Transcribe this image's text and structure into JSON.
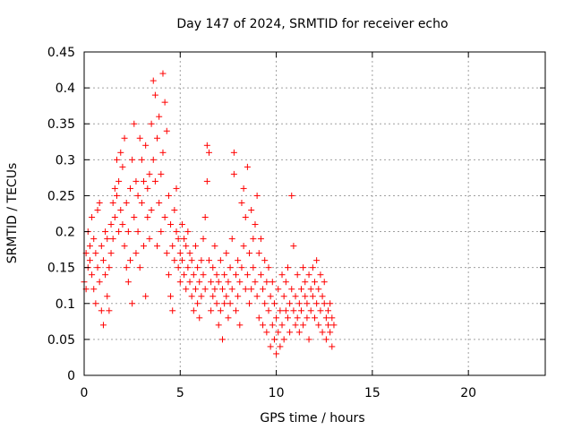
{
  "chart_data": {
    "type": "scatter",
    "title": "Day 147 of 2024, SRMTID for receiver echo",
    "xlabel": "GPS time / hours",
    "ylabel": "SRMTID / TECUs",
    "xlim": [
      0,
      24
    ],
    "ylim": [
      0,
      0.45
    ],
    "xticks": [
      0,
      5,
      10,
      15,
      20
    ],
    "yticks": [
      0,
      0.05,
      0.1,
      0.15,
      0.2,
      0.25,
      0.3,
      0.35,
      0.4,
      0.45
    ],
    "xtick_labels": [
      "0",
      "5",
      "10",
      "15",
      "20"
    ],
    "ytick_labels": [
      "0",
      "0.05",
      "0.1",
      "0.15",
      "0.2",
      "0.25",
      "0.3",
      "0.35",
      "0.4",
      "0.45"
    ],
    "grid": true,
    "marker": "+",
    "color": "#ff0000",
    "series": [
      {
        "name": "SRMTID",
        "points": [
          [
            0.0,
            0.13
          ],
          [
            0.1,
            0.12
          ],
          [
            0.1,
            0.17
          ],
          [
            0.2,
            0.2
          ],
          [
            0.2,
            0.15
          ],
          [
            0.3,
            0.18
          ],
          [
            0.3,
            0.16
          ],
          [
            0.4,
            0.14
          ],
          [
            0.4,
            0.22
          ],
          [
            0.5,
            0.19
          ],
          [
            0.5,
            0.12
          ],
          [
            0.6,
            0.1
          ],
          [
            0.6,
            0.17
          ],
          [
            0.7,
            0.23
          ],
          [
            0.7,
            0.15
          ],
          [
            0.8,
            0.24
          ],
          [
            0.8,
            0.13
          ],
          [
            0.9,
            0.09
          ],
          [
            0.9,
            0.18
          ],
          [
            1.0,
            0.07
          ],
          [
            1.0,
            0.16
          ],
          [
            1.1,
            0.2
          ],
          [
            1.1,
            0.14
          ],
          [
            1.2,
            0.11
          ],
          [
            1.2,
            0.19
          ],
          [
            1.3,
            0.15
          ],
          [
            1.3,
            0.09
          ],
          [
            1.4,
            0.21
          ],
          [
            1.4,
            0.17
          ],
          [
            1.5,
            0.24
          ],
          [
            1.5,
            0.19
          ],
          [
            1.6,
            0.26
          ],
          [
            1.6,
            0.22
          ],
          [
            1.7,
            0.3
          ],
          [
            1.7,
            0.25
          ],
          [
            1.8,
            0.27
          ],
          [
            1.8,
            0.2
          ],
          [
            1.9,
            0.31
          ],
          [
            1.9,
            0.23
          ],
          [
            2.0,
            0.29
          ],
          [
            2.0,
            0.21
          ],
          [
            2.1,
            0.33
          ],
          [
            2.1,
            0.18
          ],
          [
            2.2,
            0.24
          ],
          [
            2.2,
            0.15
          ],
          [
            2.3,
            0.2
          ],
          [
            2.3,
            0.13
          ],
          [
            2.4,
            0.16
          ],
          [
            2.4,
            0.26
          ],
          [
            2.5,
            0.1
          ],
          [
            2.5,
            0.3
          ],
          [
            2.6,
            0.35
          ],
          [
            2.6,
            0.22
          ],
          [
            2.7,
            0.27
          ],
          [
            2.7,
            0.17
          ],
          [
            2.8,
            0.25
          ],
          [
            2.8,
            0.2
          ],
          [
            2.9,
            0.33
          ],
          [
            2.9,
            0.15
          ],
          [
            3.0,
            0.3
          ],
          [
            3.0,
            0.24
          ],
          [
            3.1,
            0.18
          ],
          [
            3.1,
            0.27
          ],
          [
            3.2,
            0.32
          ],
          [
            3.2,
            0.11
          ],
          [
            3.3,
            0.22
          ],
          [
            3.3,
            0.26
          ],
          [
            3.4,
            0.28
          ],
          [
            3.4,
            0.19
          ],
          [
            3.5,
            0.35
          ],
          [
            3.5,
            0.23
          ],
          [
            3.6,
            0.41
          ],
          [
            3.6,
            0.3
          ],
          [
            3.7,
            0.39
          ],
          [
            3.7,
            0.27
          ],
          [
            3.8,
            0.33
          ],
          [
            3.8,
            0.18
          ],
          [
            3.9,
            0.36
          ],
          [
            3.9,
            0.24
          ],
          [
            4.0,
            0.28
          ],
          [
            4.0,
            0.2
          ],
          [
            4.1,
            0.42
          ],
          [
            4.1,
            0.31
          ],
          [
            4.2,
            0.38
          ],
          [
            4.2,
            0.22
          ],
          [
            4.3,
            0.34
          ],
          [
            4.3,
            0.17
          ],
          [
            4.4,
            0.25
          ],
          [
            4.4,
            0.14
          ],
          [
            4.5,
            0.21
          ],
          [
            4.5,
            0.11
          ],
          [
            4.6,
            0.18
          ],
          [
            4.6,
            0.09
          ],
          [
            4.7,
            0.16
          ],
          [
            4.7,
            0.23
          ],
          [
            4.8,
            0.26
          ],
          [
            4.8,
            0.2
          ],
          [
            4.9,
            0.15
          ],
          [
            4.9,
            0.19
          ],
          [
            5.0,
            0.17
          ],
          [
            5.0,
            0.13
          ],
          [
            5.1,
            0.21
          ],
          [
            5.1,
            0.16
          ],
          [
            5.2,
            0.19
          ],
          [
            5.2,
            0.14
          ],
          [
            5.3,
            0.18
          ],
          [
            5.3,
            0.12
          ],
          [
            5.4,
            0.2
          ],
          [
            5.4,
            0.15
          ],
          [
            5.5,
            0.13
          ],
          [
            5.5,
            0.17
          ],
          [
            5.6,
            0.11
          ],
          [
            5.6,
            0.16
          ],
          [
            5.7,
            0.14
          ],
          [
            5.7,
            0.09
          ],
          [
            5.8,
            0.12
          ],
          [
            5.8,
            0.18
          ],
          [
            5.9,
            0.1
          ],
          [
            5.9,
            0.15
          ],
          [
            6.0,
            0.13
          ],
          [
            6.0,
            0.08
          ],
          [
            6.1,
            0.16
          ],
          [
            6.1,
            0.11
          ],
          [
            6.2,
            0.14
          ],
          [
            6.2,
            0.19
          ],
          [
            6.3,
            0.12
          ],
          [
            6.3,
            0.22
          ],
          [
            6.4,
            0.32
          ],
          [
            6.4,
            0.27
          ],
          [
            6.5,
            0.31
          ],
          [
            6.5,
            0.16
          ],
          [
            6.6,
            0.13
          ],
          [
            6.6,
            0.09
          ],
          [
            6.7,
            0.15
          ],
          [
            6.7,
            0.11
          ],
          [
            6.8,
            0.12
          ],
          [
            6.8,
            0.18
          ],
          [
            6.9,
            0.1
          ],
          [
            6.9,
            0.14
          ],
          [
            7.0,
            0.13
          ],
          [
            7.0,
            0.07
          ],
          [
            7.1,
            0.09
          ],
          [
            7.1,
            0.16
          ],
          [
            7.2,
            0.12
          ],
          [
            7.2,
            0.05
          ],
          [
            7.3,
            0.14
          ],
          [
            7.3,
            0.1
          ],
          [
            7.4,
            0.11
          ],
          [
            7.4,
            0.17
          ],
          [
            7.5,
            0.13
          ],
          [
            7.5,
            0.08
          ],
          [
            7.6,
            0.15
          ],
          [
            7.6,
            0.1
          ],
          [
            7.7,
            0.12
          ],
          [
            7.7,
            0.19
          ],
          [
            7.8,
            0.31
          ],
          [
            7.8,
            0.28
          ],
          [
            7.9,
            0.14
          ],
          [
            7.9,
            0.09
          ],
          [
            8.0,
            0.16
          ],
          [
            8.0,
            0.11
          ],
          [
            8.1,
            0.13
          ],
          [
            8.1,
            0.07
          ],
          [
            8.2,
            0.24
          ],
          [
            8.2,
            0.15
          ],
          [
            8.3,
            0.26
          ],
          [
            8.3,
            0.18
          ],
          [
            8.4,
            0.22
          ],
          [
            8.4,
            0.12
          ],
          [
            8.5,
            0.29
          ],
          [
            8.5,
            0.14
          ],
          [
            8.6,
            0.17
          ],
          [
            8.6,
            0.1
          ],
          [
            8.7,
            0.23
          ],
          [
            8.7,
            0.12
          ],
          [
            8.8,
            0.15
          ],
          [
            8.8,
            0.19
          ],
          [
            8.9,
            0.21
          ],
          [
            8.9,
            0.13
          ],
          [
            9.0,
            0.25
          ],
          [
            9.0,
            0.11
          ],
          [
            9.1,
            0.17
          ],
          [
            9.1,
            0.08
          ],
          [
            9.2,
            0.14
          ],
          [
            9.2,
            0.19
          ],
          [
            9.3,
            0.12
          ],
          [
            9.3,
            0.07
          ],
          [
            9.4,
            0.1
          ],
          [
            9.4,
            0.16
          ],
          [
            9.5,
            0.13
          ],
          [
            9.5,
            0.06
          ],
          [
            9.6,
            0.09
          ],
          [
            9.6,
            0.15
          ],
          [
            9.7,
            0.11
          ],
          [
            9.7,
            0.04
          ],
          [
            9.8,
            0.07
          ],
          [
            9.8,
            0.13
          ],
          [
            9.9,
            0.05
          ],
          [
            9.9,
            0.1
          ],
          [
            10.0,
            0.03
          ],
          [
            10.0,
            0.08
          ],
          [
            10.1,
            0.06
          ],
          [
            10.1,
            0.12
          ],
          [
            10.2,
            0.04
          ],
          [
            10.2,
            0.09
          ],
          [
            10.3,
            0.07
          ],
          [
            10.3,
            0.14
          ],
          [
            10.4,
            0.11
          ],
          [
            10.4,
            0.05
          ],
          [
            10.5,
            0.09
          ],
          [
            10.5,
            0.13
          ],
          [
            10.6,
            0.08
          ],
          [
            10.6,
            0.15
          ],
          [
            10.7,
            0.1
          ],
          [
            10.7,
            0.06
          ],
          [
            10.8,
            0.25
          ],
          [
            10.8,
            0.12
          ],
          [
            10.9,
            0.18
          ],
          [
            10.9,
            0.09
          ],
          [
            11.0,
            0.07
          ],
          [
            11.0,
            0.11
          ],
          [
            11.1,
            0.14
          ],
          [
            11.1,
            0.08
          ],
          [
            11.2,
            0.1
          ],
          [
            11.2,
            0.06
          ],
          [
            11.3,
            0.12
          ],
          [
            11.3,
            0.09
          ],
          [
            11.4,
            0.15
          ],
          [
            11.4,
            0.07
          ],
          [
            11.5,
            0.11
          ],
          [
            11.5,
            0.13
          ],
          [
            11.6,
            0.08
          ],
          [
            11.6,
            0.1
          ],
          [
            11.7,
            0.14
          ],
          [
            11.7,
            0.05
          ],
          [
            11.8,
            0.12
          ],
          [
            11.8,
            0.09
          ],
          [
            11.9,
            0.15
          ],
          [
            11.9,
            0.11
          ],
          [
            12.0,
            0.13
          ],
          [
            12.0,
            0.08
          ],
          [
            12.1,
            0.16
          ],
          [
            12.1,
            0.1
          ],
          [
            12.2,
            0.12
          ],
          [
            12.2,
            0.07
          ],
          [
            12.3,
            0.14
          ],
          [
            12.3,
            0.09
          ],
          [
            12.4,
            0.11
          ],
          [
            12.4,
            0.06
          ],
          [
            12.5,
            0.1
          ],
          [
            12.5,
            0.13
          ],
          [
            12.6,
            0.08
          ],
          [
            12.6,
            0.05
          ],
          [
            12.7,
            0.09
          ],
          [
            12.7,
            0.07
          ],
          [
            12.8,
            0.06
          ],
          [
            12.8,
            0.1
          ],
          [
            12.9,
            0.04
          ],
          [
            12.9,
            0.08
          ],
          [
            13.0,
            0.07
          ]
        ]
      }
    ]
  }
}
